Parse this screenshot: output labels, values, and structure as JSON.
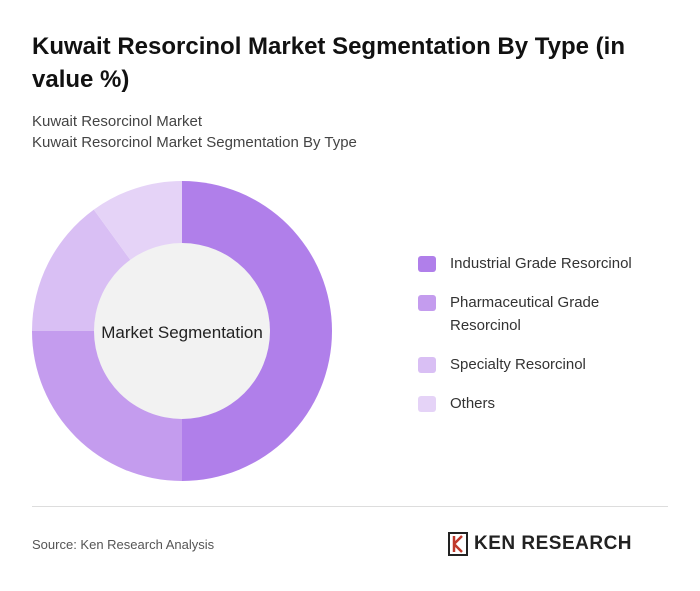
{
  "chart_data": {
    "type": "pie",
    "title": "Kuwait Resorcinol Market Segmentation By Type (in value %)",
    "subtitle": "Kuwait Resorcinol Market",
    "subtitle_2": "Kuwait Resorcinol Market Segmentation By Type",
    "center_label": "Market Segmentation",
    "categories": [
      "Industrial Grade Resorcinol",
      "Pharmaceutical Grade Resorcinol",
      "Specialty Resorcinol",
      "Others"
    ],
    "values": [
      50,
      25,
      15,
      10
    ],
    "colors": [
      "#b07fea",
      "#c49cee",
      "#d9bff4",
      "#e5d3f7"
    ],
    "source": "Source: Ken Research Analysis"
  },
  "logo": "KEN RESEARCH"
}
